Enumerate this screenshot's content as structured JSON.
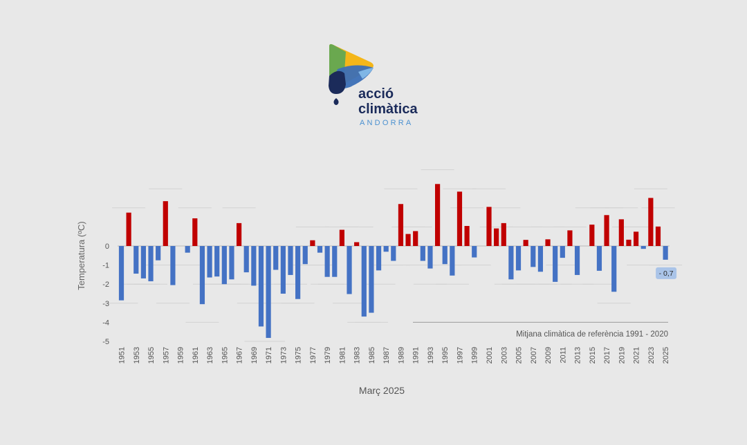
{
  "brand": {
    "line1": "acció",
    "line2": "climàtica",
    "line3": "ANDORRA",
    "colors": {
      "navy": "#1b2b5a",
      "light_blue": "#4a90d0",
      "yellow": "#f4b619",
      "green": "#6aa84f",
      "blue": "#3b6fb6"
    }
  },
  "colors": {
    "positive": "#c00000",
    "negative": "#4472c4",
    "background": "#e8e8e8",
    "ref_line": "#9a9a9a",
    "callout_bg": "#aac4e8"
  },
  "chart_data": {
    "type": "bar",
    "title": "",
    "subtitle": "Març 2025",
    "xlabel": "",
    "ylabel": "Temperatura (ºC)",
    "ylim": [
      -5,
      3.3
    ],
    "yticks": [
      0,
      -1,
      -2,
      -3,
      -4,
      -5
    ],
    "ytick_labels": [
      "0",
      "-1",
      "-2",
      "-3",
      "-4",
      "-5"
    ],
    "reference_label": "Mitjana climàtica de referència 1991 - 2020",
    "highlight": {
      "year": "2025",
      "label": "- 0,7"
    },
    "categories": [
      "1951",
      "1952",
      "1953",
      "1954",
      "1955",
      "1956",
      "1957",
      "1958",
      "1959",
      "1960",
      "1961",
      "1962",
      "1963",
      "1964",
      "1965",
      "1966",
      "1967",
      "1968",
      "1969",
      "1970",
      "1971",
      "1972",
      "1973",
      "1974",
      "1975",
      "1976",
      "1977",
      "1978",
      "1979",
      "1980",
      "1981",
      "1982",
      "1983",
      "1984",
      "1985",
      "1986",
      "1987",
      "1988",
      "1989",
      "1990",
      "1991",
      "1992",
      "1993",
      "1994",
      "1995",
      "1996",
      "1997",
      "1998",
      "1999",
      "2000",
      "2001",
      "2002",
      "2003",
      "2004",
      "2005",
      "2006",
      "2007",
      "2008",
      "2009",
      "2010",
      "2011",
      "2012",
      "2013",
      "2014",
      "2015",
      "2016",
      "2017",
      "2018",
      "2019",
      "2020",
      "2021",
      "2022",
      "2023",
      "2024",
      "2025"
    ],
    "values": [
      -2.85,
      1.75,
      -1.45,
      -1.7,
      -1.85,
      -0.75,
      2.35,
      -2.05,
      0,
      -0.35,
      1.45,
      -3.05,
      -1.65,
      -1.6,
      -2.0,
      -1.75,
      1.2,
      -1.38,
      -2.08,
      -4.22,
      -4.82,
      -1.25,
      -2.5,
      -1.52,
      -2.78,
      -0.95,
      0.3,
      -0.35,
      -1.62,
      -1.62,
      0.85,
      -2.52,
      0.2,
      -3.7,
      -3.5,
      -1.28,
      -0.3,
      -0.78,
      2.2,
      0.63,
      0.78,
      -0.78,
      -1.18,
      3.25,
      -0.95,
      -1.55,
      2.85,
      1.05,
      -0.6,
      0,
      2.05,
      0.92,
      1.2,
      -1.75,
      -1.28,
      0.32,
      -1.1,
      -1.35,
      0.35,
      -1.88,
      -0.62,
      0.82,
      -1.52,
      0,
      1.12,
      -1.3,
      1.62,
      -2.4,
      1.4,
      0.33,
      0.75,
      -0.15,
      2.52,
      1.02,
      -0.72
    ],
    "tick_years": [
      "1951",
      "1953",
      "1955",
      "1957",
      "1959",
      "1961",
      "1963",
      "1965",
      "1967",
      "1969",
      "1971",
      "1973",
      "1975",
      "1977",
      "1979",
      "1981",
      "1983",
      "1985",
      "1987",
      "1989",
      "1991",
      "1993",
      "1995",
      "1997",
      "1999",
      "2001",
      "2003",
      "2005",
      "2007",
      "2009",
      "2011",
      "2013",
      "2015",
      "2017",
      "2019",
      "2021",
      "2023",
      "2025"
    ]
  }
}
